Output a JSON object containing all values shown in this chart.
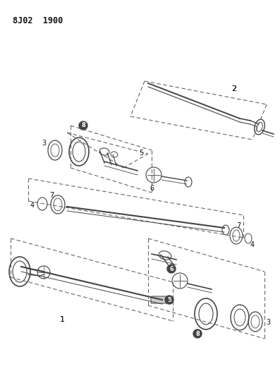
{
  "title": "8J02  1900",
  "bg_color": "#ffffff",
  "line_color": "#444444",
  "label_color": "#111111",
  "figsize": [
    3.97,
    5.33
  ],
  "dpi": 100
}
